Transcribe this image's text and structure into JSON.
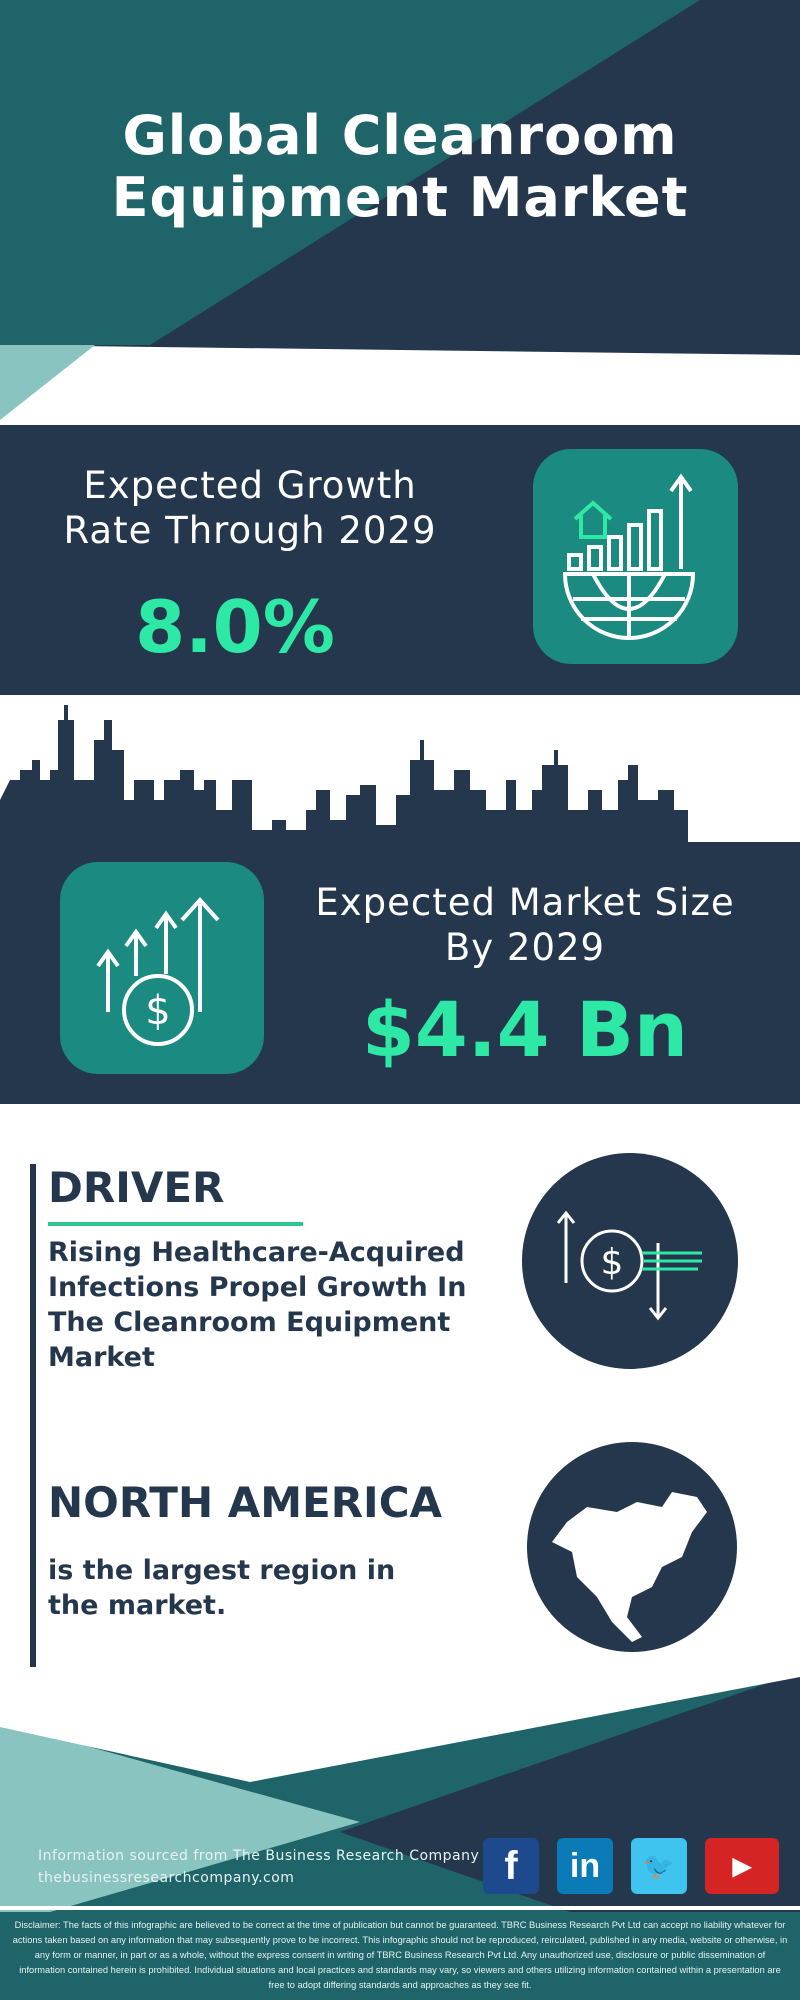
{
  "header": {
    "title_line1": "Global Cleanroom",
    "title_line2": "Equipment Market"
  },
  "growth": {
    "label_line1": "Expected Growth",
    "label_line2": "Rate Through 2029",
    "value": "8.0%",
    "icon": "globe-growth-chart-icon"
  },
  "market_size": {
    "label_line1": "Expected Market Size",
    "label_line2": "By 2029",
    "value": "$4.4 Bn",
    "icon": "dollar-coin-growth-arrows-icon"
  },
  "driver": {
    "heading": "DRIVER",
    "text": "Rising Healthcare-Acquired Infections Propel Growth In The Cleanroom Equipment Market",
    "icon": "dollar-exchange-icon"
  },
  "region": {
    "heading": "NORTH AMERICA",
    "text": "is the largest region in the market.",
    "icon": "north-america-map-icon"
  },
  "footer": {
    "source": "Information sourced from The Business Research Company",
    "website": "thebusinessresearchcompany.com",
    "social": [
      {
        "label": "f",
        "icon": "facebook-icon",
        "color": "#1c4a8c"
      },
      {
        "label": "in",
        "icon": "linkedin-icon",
        "color": "#0a7bb7"
      },
      {
        "label": "🐦",
        "icon": "twitter-icon",
        "color": "#3ec4ee"
      },
      {
        "label": "▶",
        "icon": "youtube-icon",
        "color": "#d42424"
      }
    ],
    "disclaimer": "Disclaimer: The facts of this infographic are believed to be correct at the time of publication but cannot be guaranteed. TBRC Business Research Pvt Ltd can accept no liability whatever for actions taken based on any information that may subsequently prove to be incorrect. This infographic should not be reproduced, reirculated, published in any media, website or otherwise, in any form or manner, in part or as a whole, without the express consent in writing of TBRC Business Research Pvt Ltd. Any unauthorized use, disclosure or public dissemination of information contained herein is prohibited. Individual situations and local practices and standards may vary, so viewers and others utilizing information contained within a presentation are free to adopt differing standards and approaches as they see fit."
  },
  "colors": {
    "navy": "#24374d",
    "teal": "#1e6468",
    "accent": "#2ee8a6",
    "icon_box": "#1b8a80",
    "light_teal": "#8ac4c0"
  }
}
